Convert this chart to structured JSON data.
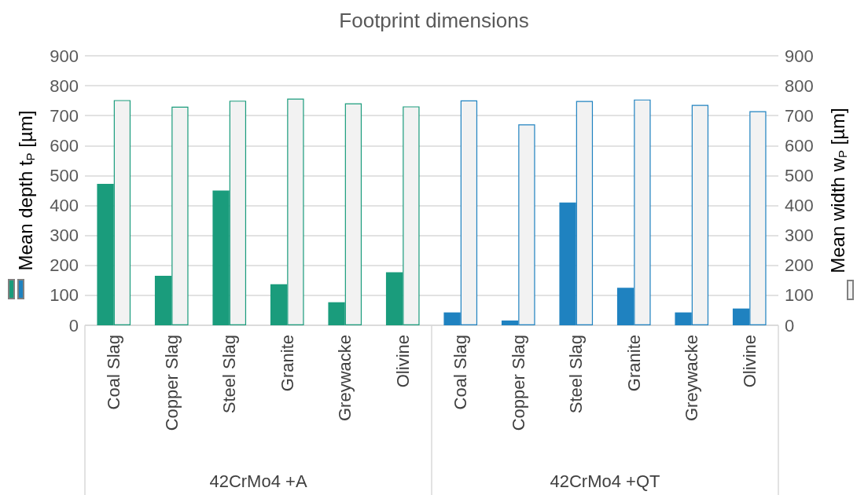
{
  "chart_data": {
    "type": "bar",
    "title": "Footprint dimensions",
    "ylabel": "Mean depth t$_{P}$ [µm]",
    "y2label": "Mean width w$_{P}$ [µm]",
    "categories": [
      "Coal Slag",
      "Copper Slag",
      "Steel Slag",
      "Granite",
      "Greywacke",
      "Olivine",
      "Coal Slag",
      "Copper Slag",
      "Steel Slag",
      "Granite",
      "Greywacke",
      "Olivine"
    ],
    "annotations": [
      "42CrMo4 +A",
      "42CrMo4 +QT"
    ],
    "series": [
      {
        "colors": [
          "#1a9c7c",
          "#1a9c7c",
          "#1a9c7c",
          "#1a9c7c",
          "#1a9c7c",
          "#1a9c7c",
          "#1f82c0",
          "#1f82c0",
          "#1f82c0",
          "#1f82c0",
          "#1f82c0",
          "#1f82c0"
        ],
        "values": [
          472,
          165,
          450,
          137,
          77,
          177,
          43,
          16,
          410,
          125,
          43,
          56
        ]
      },
      {
        "axis": "y2",
        "color": "#f2f2f2",
        "values": [
          752,
          730,
          750,
          757,
          741,
          731,
          751,
          671,
          749,
          754,
          736,
          715
        ]
      }
    ],
    "ylim": [
      0,
      900
    ],
    "yticks": [
      0,
      100,
      200,
      300,
      400,
      500,
      600,
      700,
      800,
      900
    ],
    "y2lim": [
      0,
      900
    ],
    "y2ticks": [
      0,
      100,
      200,
      300,
      400,
      500,
      600,
      700,
      800,
      900
    ],
    "grid": "y"
  }
}
